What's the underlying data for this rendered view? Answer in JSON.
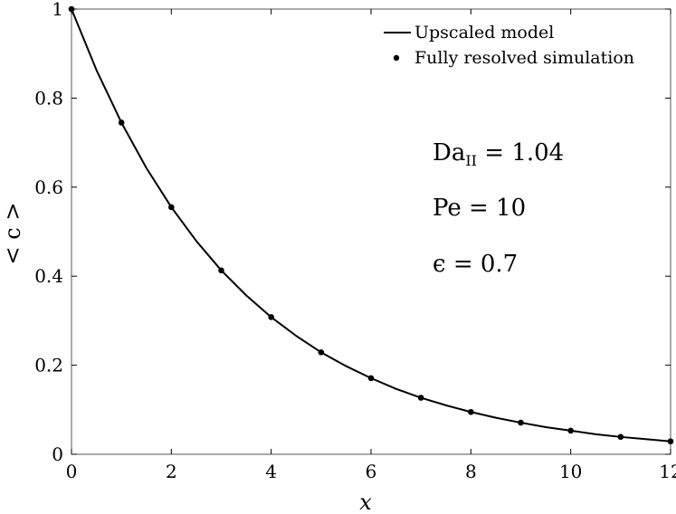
{
  "chart_data": {
    "type": "line",
    "xlabel": "x",
    "ylabel": "< c >",
    "xlim": [
      0,
      12
    ],
    "ylim": [
      0,
      1
    ],
    "x_ticks": [
      "0",
      "2",
      "4",
      "6",
      "8",
      "10",
      "12"
    ],
    "y_ticks": [
      "0",
      "0.2",
      "0.4",
      "0.6",
      "0.8",
      "1"
    ],
    "grid": false,
    "legend_position": "top-right",
    "series": [
      {
        "name": "Upscaled model",
        "kind": "line",
        "x": [
          0,
          0.5,
          1,
          1.5,
          2,
          2.5,
          3,
          3.5,
          4,
          4.5,
          5,
          5.5,
          6,
          6.5,
          7,
          7.5,
          8,
          8.5,
          9,
          9.5,
          10,
          10.5,
          11,
          11.5,
          12
        ],
        "y": [
          1.0,
          0.863,
          0.745,
          0.643,
          0.555,
          0.479,
          0.413,
          0.357,
          0.308,
          0.266,
          0.229,
          0.198,
          0.171,
          0.147,
          0.127,
          0.11,
          0.095,
          0.082,
          0.071,
          0.061,
          0.053,
          0.045,
          0.039,
          0.034,
          0.029
        ]
      },
      {
        "name": "Fully resolved simulation",
        "kind": "scatter",
        "x": [
          0,
          1,
          2,
          3,
          4,
          5,
          6,
          7,
          8,
          9,
          10,
          11,
          12
        ],
        "y": [
          1.0,
          0.745,
          0.555,
          0.413,
          0.308,
          0.229,
          0.171,
          0.127,
          0.095,
          0.071,
          0.053,
          0.039,
          0.029
        ]
      }
    ],
    "annotations": {
      "da_main": "Da",
      "da_sub": "II",
      "da_rest": " = 1.04",
      "pe": "Pe = 10",
      "eps": "ϵ = 0.7"
    }
  },
  "colors": {
    "line": "#000000",
    "marker": "#000000",
    "axis": "#000000"
  }
}
